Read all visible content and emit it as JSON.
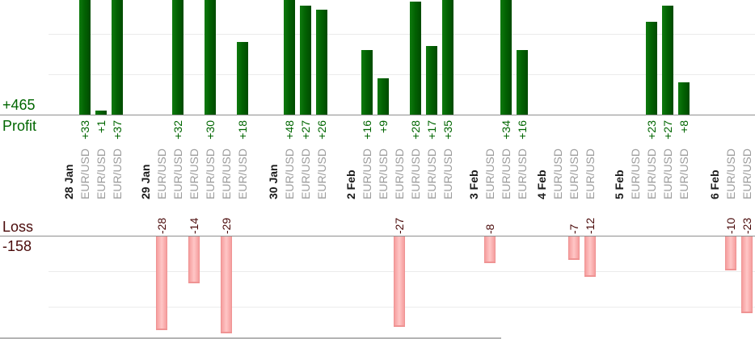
{
  "summary": {
    "profit_total": "+465",
    "profit_axis_label": "Profit",
    "loss_axis_label": "Loss",
    "loss_total": "-158"
  },
  "chart_data": {
    "type": "bar",
    "orientation": "vertical",
    "legend": "none",
    "grid": "on",
    "gridline_step": 10,
    "axis_color": "#8f8f8f",
    "grid_color": "#ebebeb",
    "date_label_color": "#1c1c1c",
    "symbol_label_color": "#9c9c9c",
    "panels": {
      "profit": {
        "axis_label": "Profit",
        "total": 465,
        "bar_color_light": "#0e7a0e",
        "bar_color": "#036303",
        "bar_color_dark": "#004a00",
        "text_color": "#006600"
      },
      "loss": {
        "axis_label": "Loss",
        "total": -158,
        "bar_color_center": "#ffc6c6",
        "bar_color_edge": "#f59e9e",
        "bar_border_color": "#ef9393",
        "text_color": "#4a0a0a"
      }
    },
    "groups": [
      {
        "date": "28 Jan",
        "trades": [
          {
            "symbol": "EUR/USD",
            "value": 33
          },
          {
            "symbol": "EUR/USD",
            "value": 1
          },
          {
            "symbol": "EUR/USD",
            "value": 37
          }
        ]
      },
      {
        "date": "29 Jan",
        "trades": [
          {
            "symbol": "EUR/USD",
            "value": -28
          },
          {
            "symbol": "EUR/USD",
            "value": 32
          },
          {
            "symbol": "EUR/USD",
            "value": -14
          },
          {
            "symbol": "EUR/USD",
            "value": 30
          },
          {
            "symbol": "EUR/USD",
            "value": -29
          },
          {
            "symbol": "EUR/USD",
            "value": 18
          }
        ]
      },
      {
        "date": "30 Jan",
        "trades": [
          {
            "symbol": "EUR/USD",
            "value": 48
          },
          {
            "symbol": "EUR/USD",
            "value": 27
          },
          {
            "symbol": "EUR/USD",
            "value": 26
          }
        ]
      },
      {
        "date": "2 Feb",
        "trades": [
          {
            "symbol": "EUR/USD",
            "value": 16
          },
          {
            "symbol": "EUR/USD",
            "value": 9
          },
          {
            "symbol": "EUR/USD",
            "value": -27
          },
          {
            "symbol": "EUR/USD",
            "value": 28
          },
          {
            "symbol": "EUR/USD",
            "value": 17
          },
          {
            "symbol": "EUR/USD",
            "value": 35
          }
        ]
      },
      {
        "date": "3 Feb",
        "trades": [
          {
            "symbol": "EUR/USD",
            "value": -8
          },
          {
            "symbol": "EUR/USD",
            "value": 34
          },
          {
            "symbol": "EUR/USD",
            "value": 16
          }
        ]
      },
      {
        "date": "4 Feb",
        "trades": [
          {
            "symbol": "EUR/USD",
            "value": 0
          },
          {
            "symbol": "EUR/USD",
            "value": -7
          },
          {
            "symbol": "EUR/USD",
            "value": -12
          }
        ]
      },
      {
        "date": "5 Feb",
        "trades": [
          {
            "symbol": "EUR/USD",
            "value": 0
          },
          {
            "symbol": "EUR/USD",
            "value": 23
          },
          {
            "symbol": "EUR/USD",
            "value": 27
          },
          {
            "symbol": "EUR/USD",
            "value": 8
          }
        ]
      },
      {
        "date": "6 Feb",
        "trades": [
          {
            "symbol": "EUR/USD",
            "value": -10
          },
          {
            "symbol": "EUR/USD",
            "value": -23
          }
        ]
      }
    ]
  }
}
